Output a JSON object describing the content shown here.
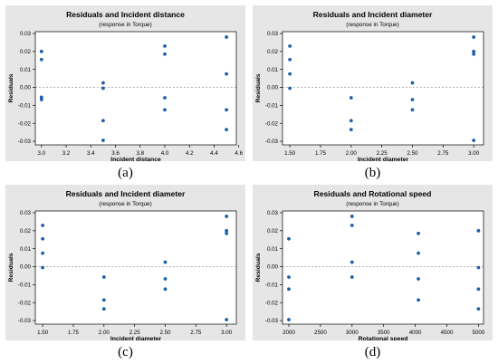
{
  "colors": {
    "panel_bg": "#e6e6e6",
    "plot_bg": "#ffffff",
    "point": "#1f5fa8",
    "refline": "#9a9a9a",
    "text": "#000000"
  },
  "captions": [
    "(a)",
    "(b)",
    "(c)",
    "(d)"
  ],
  "chart_data": [
    {
      "type": "scatter",
      "title": "Residuals and Incident distance",
      "subtitle": "(response in Torque)",
      "xlabel": "Incident distance",
      "ylabel": "Residuals",
      "xlim": [
        2.95,
        4.58
      ],
      "ylim": [
        -0.032,
        0.031
      ],
      "xticks": [
        3.0,
        3.2,
        3.4,
        3.6,
        3.8,
        4.0,
        4.2,
        4.4,
        4.6
      ],
      "xtick_labels": [
        "3.0",
        "3.2",
        "3.4",
        "3.6",
        "3.8",
        "4.0",
        "4.2",
        "4.4",
        "4.6"
      ],
      "yticks": [
        0.03,
        0.02,
        0.01,
        0.0,
        -0.01,
        -0.02,
        -0.03
      ],
      "ytick_labels": [
        "0.03",
        "0.02",
        "0.01",
        "0.00",
        "-0.01",
        "-0.02",
        "-0.03"
      ],
      "reference_line": 0,
      "points": [
        {
          "x": 3.0,
          "y": 0.02
        },
        {
          "x": 3.0,
          "y": 0.0155
        },
        {
          "x": 3.0,
          "y": -0.0055
        },
        {
          "x": 3.0,
          "y": -0.0068
        },
        {
          "x": 3.5,
          "y": 0.0025
        },
        {
          "x": 3.5,
          "y": -0.0005
        },
        {
          "x": 3.5,
          "y": -0.0185
        },
        {
          "x": 3.5,
          "y": -0.0295
        },
        {
          "x": 4.0,
          "y": 0.023
        },
        {
          "x": 4.0,
          "y": 0.0185
        },
        {
          "x": 4.0,
          "y": -0.0058
        },
        {
          "x": 4.0,
          "y": -0.0125
        },
        {
          "x": 4.5,
          "y": 0.028
        },
        {
          "x": 4.5,
          "y": 0.0075
        },
        {
          "x": 4.5,
          "y": -0.0125
        },
        {
          "x": 4.5,
          "y": -0.0235
        }
      ]
    },
    {
      "type": "scatter",
      "title": "Residuals and Incident diameter",
      "subtitle": "(response in Torque)",
      "xlabel": "Incident diameter",
      "ylabel": "Residuals",
      "xlim": [
        1.44,
        3.08
      ],
      "ylim": [
        -0.032,
        0.031
      ],
      "xticks": [
        1.5,
        1.75,
        2.0,
        2.25,
        2.5,
        2.75,
        3.0
      ],
      "xtick_labels": [
        "1.50",
        "1.75",
        "2.00",
        "2.25",
        "2.50",
        "2.75",
        "3.00"
      ],
      "yticks": [
        0.03,
        0.02,
        0.01,
        0.0,
        -0.01,
        -0.02,
        -0.03
      ],
      "ytick_labels": [
        "0.03",
        "0.02",
        "0.01",
        "0.00",
        "-0.01",
        "-0.02",
        "-0.03"
      ],
      "reference_line": 0,
      "points": [
        {
          "x": 1.5,
          "y": 0.023
        },
        {
          "x": 1.5,
          "y": 0.0155
        },
        {
          "x": 1.5,
          "y": 0.0075
        },
        {
          "x": 1.5,
          "y": -0.0005
        },
        {
          "x": 2.0,
          "y": -0.0058
        },
        {
          "x": 2.0,
          "y": -0.0185
        },
        {
          "x": 2.0,
          "y": -0.0235
        },
        {
          "x": 2.5,
          "y": 0.0025
        },
        {
          "x": 2.5,
          "y": -0.0068
        },
        {
          "x": 2.5,
          "y": -0.0125
        },
        {
          "x": 3.0,
          "y": 0.028
        },
        {
          "x": 3.0,
          "y": 0.02
        },
        {
          "x": 3.0,
          "y": 0.0185
        },
        {
          "x": 3.0,
          "y": -0.0295
        }
      ]
    },
    {
      "type": "scatter",
      "title": "Residuals and Incident diameter",
      "subtitle": "(response in Torque)",
      "xlabel": "Incident diameter",
      "ylabel": "Residuals",
      "xlim": [
        1.44,
        3.08
      ],
      "ylim": [
        -0.032,
        0.031
      ],
      "xticks": [
        1.5,
        1.75,
        2.0,
        2.25,
        2.5,
        2.75,
        3.0
      ],
      "xtick_labels": [
        "1.50",
        "1.75",
        "2.00",
        "2.25",
        "2.50",
        "2.75",
        "3.00"
      ],
      "yticks": [
        0.03,
        0.02,
        0.01,
        0.0,
        -0.01,
        -0.02,
        -0.03
      ],
      "ytick_labels": [
        "0.03",
        "0.02",
        "0.01",
        "0.00",
        "-0.01",
        "-0.02",
        "-0.03"
      ],
      "reference_line": 0,
      "points": [
        {
          "x": 1.5,
          "y": 0.023
        },
        {
          "x": 1.5,
          "y": 0.0155
        },
        {
          "x": 1.5,
          "y": 0.0075
        },
        {
          "x": 1.5,
          "y": -0.0005
        },
        {
          "x": 2.0,
          "y": -0.0058
        },
        {
          "x": 2.0,
          "y": -0.0185
        },
        {
          "x": 2.0,
          "y": -0.0235
        },
        {
          "x": 2.5,
          "y": 0.0025
        },
        {
          "x": 2.5,
          "y": -0.0068
        },
        {
          "x": 2.5,
          "y": -0.0125
        },
        {
          "x": 3.0,
          "y": 0.028
        },
        {
          "x": 3.0,
          "y": 0.02
        },
        {
          "x": 3.0,
          "y": 0.0185
        },
        {
          "x": 3.0,
          "y": -0.0295
        }
      ]
    },
    {
      "type": "scatter",
      "title": "Residuals and Rotational speed",
      "subtitle": "(response in Torque)",
      "xlabel": "Rotational speed",
      "ylabel": "Residuals",
      "xlim": [
        1900,
        5080
      ],
      "ylim": [
        -0.032,
        0.031
      ],
      "xticks": [
        2000,
        2500,
        3000,
        3500,
        4000,
        4500,
        5000
      ],
      "xtick_labels": [
        "2000",
        "2500",
        "3000",
        "3500",
        "4000",
        "4500",
        "5000"
      ],
      "yticks": [
        0.03,
        0.02,
        0.01,
        0.0,
        -0.01,
        -0.02,
        -0.03
      ],
      "ytick_labels": [
        "0.03",
        "0.02",
        "0.01",
        "0.00",
        "-0.01",
        "-0.02",
        "-0.03"
      ],
      "reference_line": 0,
      "points": [
        {
          "x": 2000,
          "y": 0.0155
        },
        {
          "x": 2000,
          "y": -0.0058
        },
        {
          "x": 2000,
          "y": -0.0125
        },
        {
          "x": 2000,
          "y": -0.0295
        },
        {
          "x": 3000,
          "y": 0.028
        },
        {
          "x": 3000,
          "y": 0.023
        },
        {
          "x": 3000,
          "y": 0.0025
        },
        {
          "x": 3000,
          "y": -0.0058
        },
        {
          "x": 4050,
          "y": 0.0185
        },
        {
          "x": 4050,
          "y": 0.0075
        },
        {
          "x": 4050,
          "y": -0.0068
        },
        {
          "x": 4050,
          "y": -0.0185
        },
        {
          "x": 5000,
          "y": 0.02
        },
        {
          "x": 5000,
          "y": -0.0005
        },
        {
          "x": 5000,
          "y": -0.0125
        },
        {
          "x": 5000,
          "y": -0.0235
        }
      ]
    }
  ]
}
